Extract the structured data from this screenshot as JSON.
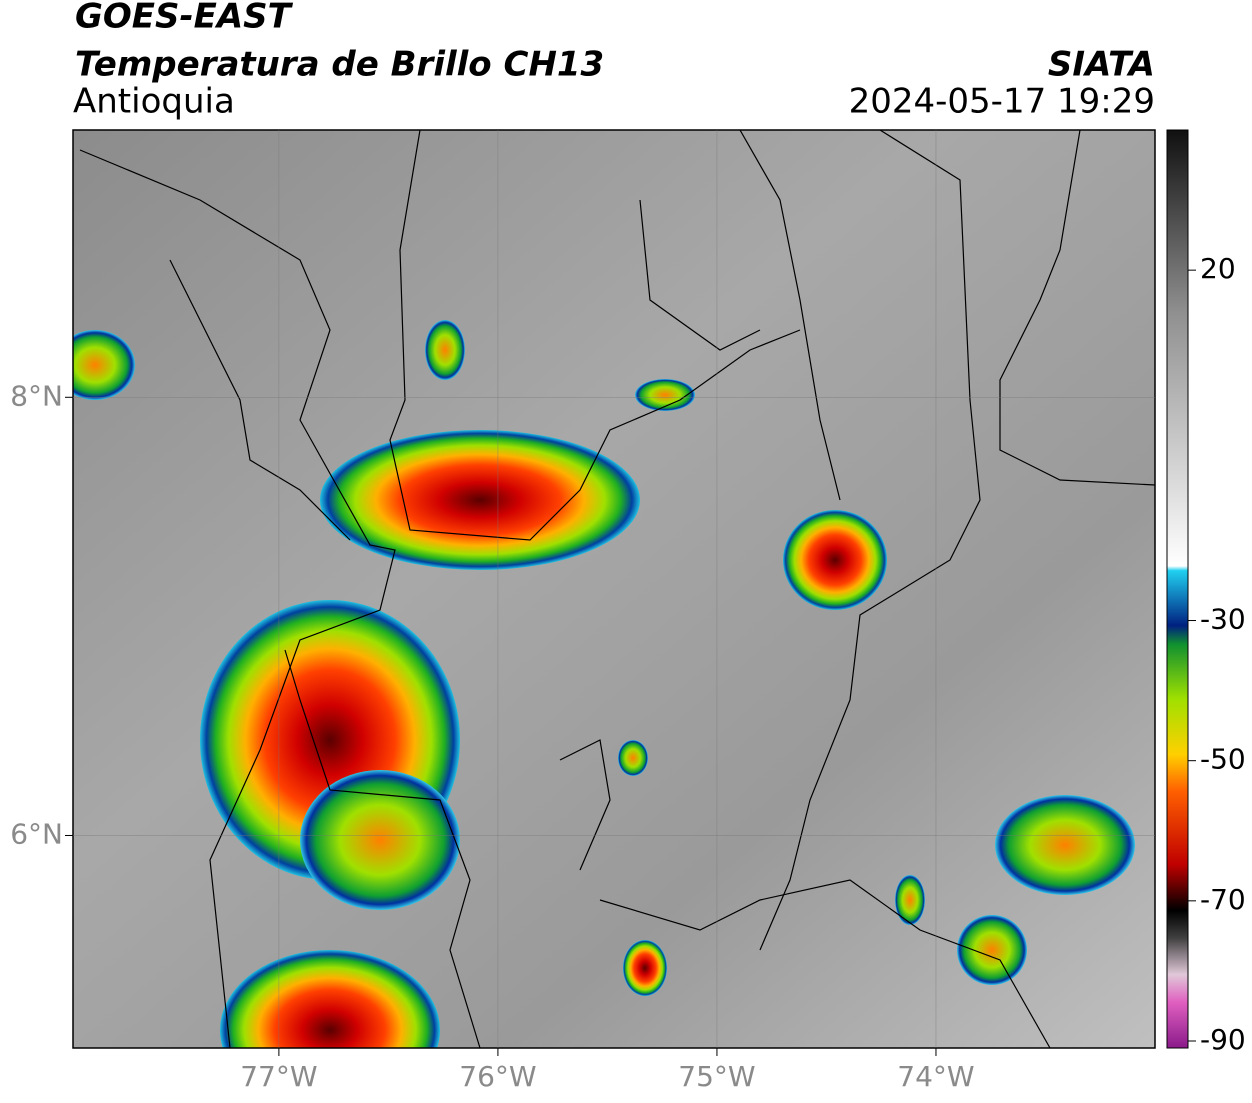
{
  "header": {
    "satellite": "GOES-EAST",
    "product": "Temperatura de Brillo CH13",
    "region": "Antioquia",
    "source": "SIATA",
    "datetime": "2024-05-17 19:29"
  },
  "map": {
    "xlim": [
      -77.94,
      -73.0
    ],
    "ylim": [
      5.03,
      9.22
    ],
    "grid": true,
    "xticks": [
      {
        "value": -77,
        "label": "77°W"
      },
      {
        "value": -76,
        "label": "76°W"
      },
      {
        "value": -75,
        "label": "75°W"
      },
      {
        "value": -74,
        "label": "74°W"
      }
    ],
    "yticks": [
      {
        "value": 8,
        "label": "8°N"
      },
      {
        "value": 6,
        "label": "6°N"
      }
    ]
  },
  "colorbar": {
    "lim": [
      -91,
      40
    ],
    "ticks": [
      20,
      -30,
      -50,
      -70,
      -90
    ]
  }
}
